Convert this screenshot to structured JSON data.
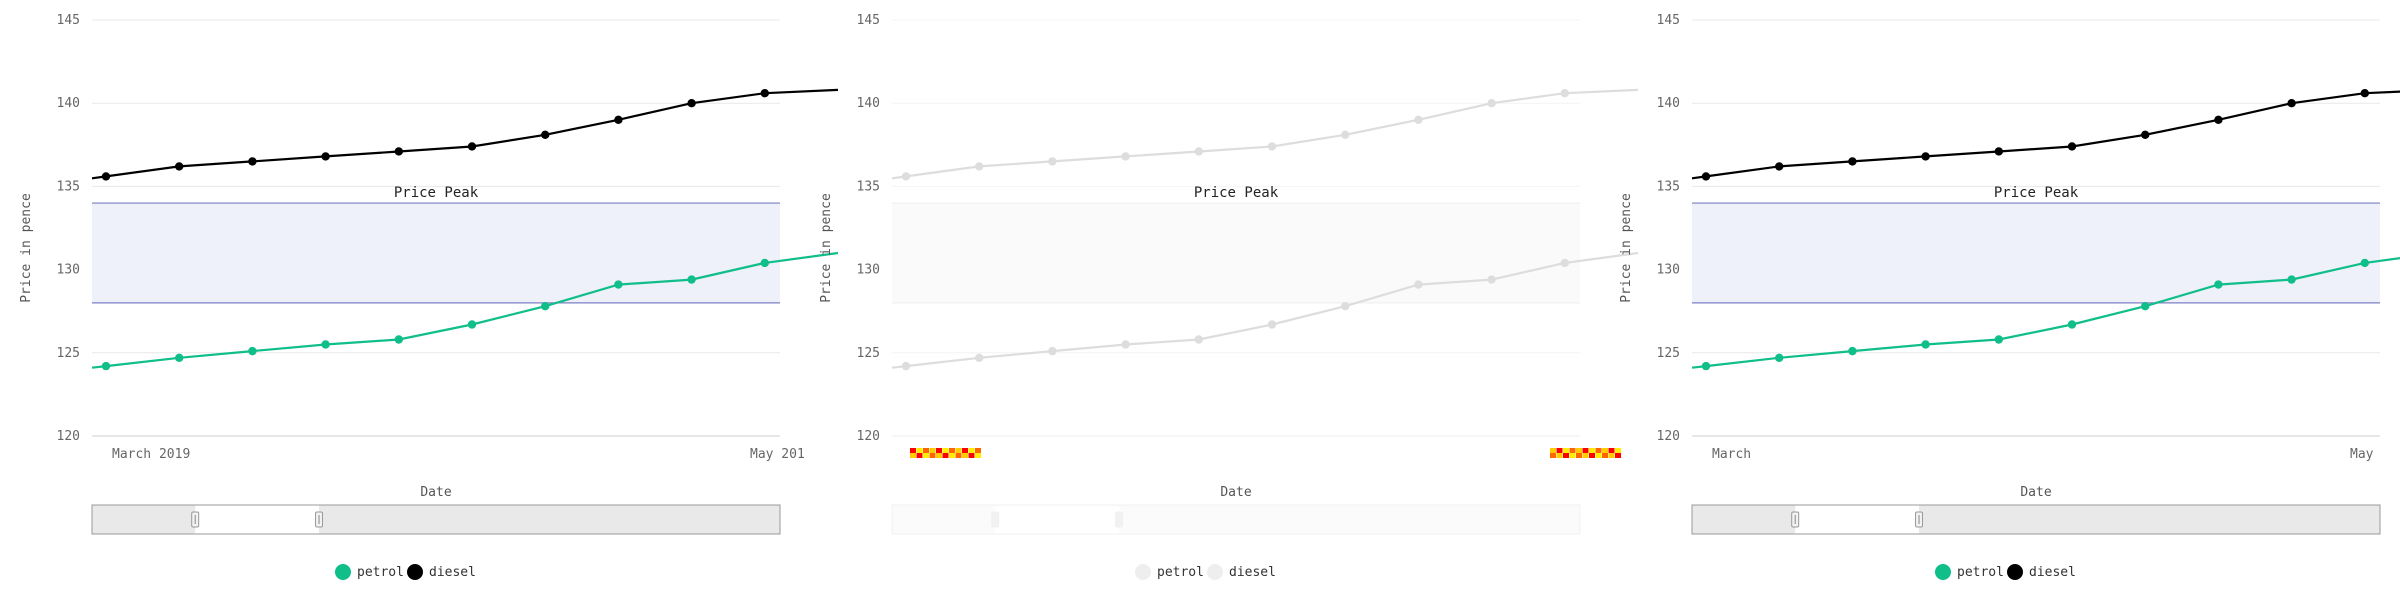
{
  "chart_data": [
    {
      "type": "line",
      "faded": false,
      "title": "",
      "xlabel": "Date",
      "ylabel": "Price in pence",
      "ylim": [
        120,
        145
      ],
      "yticks": [
        120,
        125,
        130,
        135,
        140,
        145
      ],
      "x_tick_labels": [
        "March 2019",
        "May 201"
      ],
      "band": {
        "label": "Price Peak",
        "from": 128,
        "to": 134
      },
      "series": [
        {
          "name": "petrol",
          "color": "#10be8a",
          "values": [
            124.2,
            124.7,
            125.1,
            125.5,
            125.8,
            126.7,
            127.8,
            129.1,
            129.4,
            130.4,
            131.0
          ]
        },
        {
          "name": "diesel",
          "color": "#000000",
          "values": [
            135.6,
            136.2,
            136.5,
            136.8,
            137.1,
            137.4,
            138.1,
            139.0,
            140.0,
            140.6,
            140.8
          ]
        }
      ],
      "navigator": {
        "window": [
          0.15,
          0.33
        ]
      },
      "legend": [
        "petrol",
        "diesel"
      ]
    },
    {
      "type": "line",
      "faded": true,
      "title": "",
      "xlabel": "Date",
      "ylabel": "Price in pence",
      "ylim": [
        120,
        145
      ],
      "yticks": [
        120,
        125,
        130,
        135,
        140,
        145
      ],
      "x_tick_labels": [
        "",
        ""
      ],
      "band": {
        "label": "Price Peak",
        "from": 128,
        "to": 134
      },
      "series": [
        {
          "name": "petrol",
          "color": "#dddddd",
          "values": [
            124.2,
            124.7,
            125.1,
            125.5,
            125.8,
            126.7,
            127.8,
            129.1,
            129.4,
            130.4,
            131.0
          ]
        },
        {
          "name": "diesel",
          "color": "#dddddd",
          "values": [
            135.6,
            136.2,
            136.5,
            136.8,
            137.1,
            137.4,
            138.1,
            139.0,
            140.0,
            140.6,
            140.8
          ]
        }
      ],
      "navigator": {
        "window": [
          0.15,
          0.33
        ]
      },
      "legend": [
        "petrol",
        "diesel"
      ]
    },
    {
      "type": "line",
      "faded": false,
      "title": "",
      "xlabel": "Date",
      "ylabel": "Price in pence",
      "ylim": [
        120,
        145
      ],
      "yticks": [
        120,
        125,
        130,
        135,
        140,
        145
      ],
      "x_tick_labels": [
        "March",
        "May"
      ],
      "band": {
        "label": "Price Peak",
        "from": 128,
        "to": 134
      },
      "series": [
        {
          "name": "petrol",
          "color": "#10be8a",
          "values": [
            124.2,
            124.7,
            125.1,
            125.5,
            125.8,
            126.7,
            127.8,
            129.1,
            129.4,
            130.4,
            131.0
          ]
        },
        {
          "name": "diesel",
          "color": "#000000",
          "values": [
            135.6,
            136.2,
            136.5,
            136.8,
            137.1,
            137.4,
            138.1,
            139.0,
            140.0,
            140.6,
            140.8
          ]
        }
      ],
      "navigator": {
        "window": [
          0.15,
          0.33
        ]
      },
      "legend": [
        "petrol",
        "diesel"
      ]
    }
  ]
}
